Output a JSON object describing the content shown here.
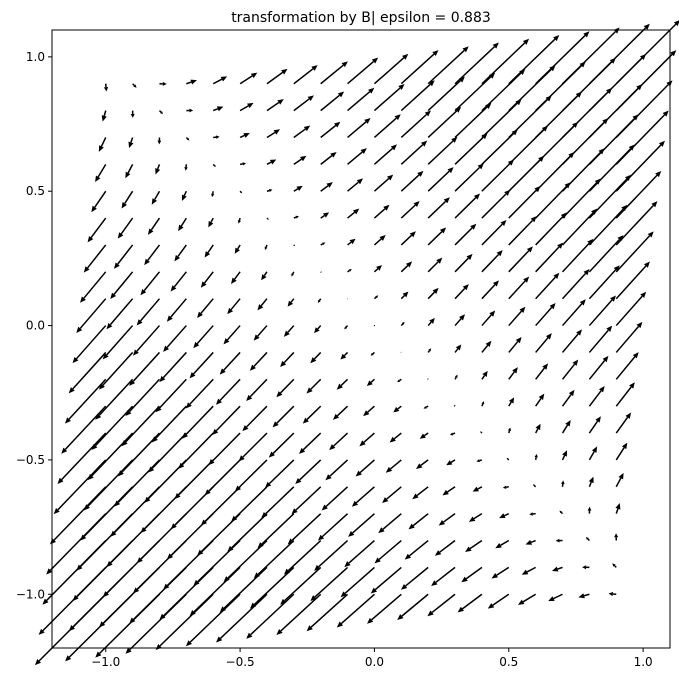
{
  "chart_data": {
    "type": "quiver",
    "title": "transformation by B| epsilon = 0.883",
    "xlabel": "",
    "ylabel": "",
    "xlim": [
      -1.2,
      1.1
    ],
    "ylim": [
      -1.2,
      1.1
    ],
    "x_ticks": [
      -1.0,
      -0.5,
      0.0,
      0.5,
      1.0
    ],
    "y_ticks": [
      -1.0,
      -0.5,
      0.0,
      0.5,
      1.0
    ],
    "x_tick_labels": [
      "−1.0",
      "−0.5",
      "0.0",
      "0.5",
      "1.0"
    ],
    "y_tick_labels": [
      "−1.0",
      "−0.5",
      "0.0",
      "0.5",
      "1.0"
    ],
    "grid": false,
    "grid_x": {
      "start": -1.0,
      "end": 0.9,
      "count": 20
    },
    "grid_y": {
      "start": -1.0,
      "end": 0.9,
      "count": 20
    },
    "vector_field": {
      "u": "epsilon * x * 0.14 + y * 0.14",
      "v": "epsilon * y * 0.14 + x * 0.14",
      "epsilon": 0.883
    },
    "arrow_color": "#000000"
  }
}
